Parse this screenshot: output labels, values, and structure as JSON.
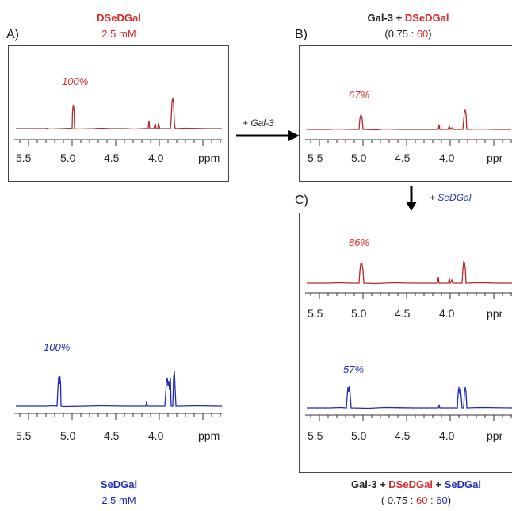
{
  "panel_A": {
    "letter": "A)",
    "title": "DSeDGal",
    "conc": "2.5 mM",
    "pct_top": "100%",
    "pct_bottom": "100%",
    "bottom_title": "SeDGal",
    "bottom_conc": "2.5 mM"
  },
  "panel_B": {
    "letter": "B)",
    "title_prefix": "Gal-3 + ",
    "title_red": "DSeDGal",
    "ratio_open": "(0.75 : ",
    "ratio_red": "60",
    "ratio_close": ")",
    "pct": "67%"
  },
  "panel_C": {
    "letter": "C)",
    "pct_top": "86%",
    "pct_bottom": "57%",
    "title_prefix": "Gal-3 + ",
    "title_red": "DSeDGal",
    "title_plus": " + ",
    "title_blue": "SeDGal",
    "ratio_open": "( 0.75 : ",
    "ratio_red": "60",
    "ratio_mid": " : ",
    "ratio_blue": "60",
    "ratio_close": ")"
  },
  "arrows": {
    "gal3": "+ Gal-3",
    "sedgal": "+ SeDGal"
  },
  "axis": {
    "ticks": [
      "5.5",
      "5.0",
      "4.5",
      "4.0"
    ],
    "unit": "ppm",
    "unit_cut": "ppr"
  },
  "colors": {
    "red_trace": "#b5272b",
    "blue_trace": "#1f2bb8",
    "red_text": "#d42b2b",
    "blue_text": "#1f2bb8"
  }
}
